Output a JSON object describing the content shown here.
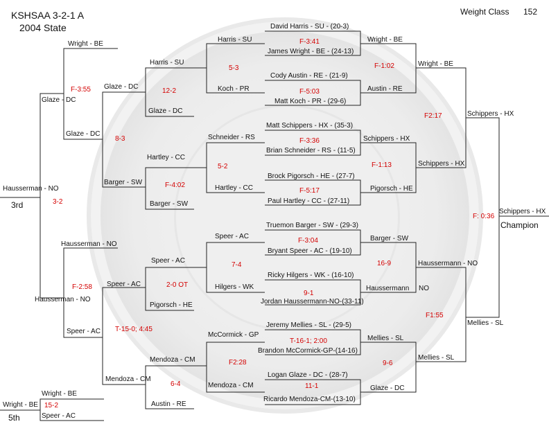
{
  "header": {
    "line1": "KSHSAA 3-2-1 A",
    "line2": "2004 State",
    "weight_label": "Weight Class",
    "weight_value": "152"
  },
  "round1": {
    "m1": {
      "top": "David Harris - SU - (20-3)",
      "bottom": "James Wright - BE - (24-13)",
      "score": "F-3:41"
    },
    "m2": {
      "top": "Cody Austin - RE - (21-9)",
      "bottom": "Matt Koch - PR - (29-6)",
      "score": "F-5:03"
    },
    "m3": {
      "top": "Matt Schippers - HX - (35-3)",
      "bottom": "Brian Schneider - RS - (11-5)",
      "score": "F-3:36"
    },
    "m4": {
      "top": "Brock Pigorsch - HE - (27-7)",
      "bottom": "Paul Hartley - CC - (27-11)",
      "score": "F-5:17"
    },
    "m5": {
      "top": "Truemon Barger - SW - (29-3)",
      "bottom": "Bryant Speer - AC - (19-10)",
      "score": "F-3:04"
    },
    "m6": {
      "top": "Ricky Hilgers - WK - (16-10)",
      "bottom": "Jordan Haussermann-NO-(33-11)",
      "score": "9-1"
    },
    "m7": {
      "top": "Jeremy Mellies - SL - (29-5)",
      "bottom": "Brandon McCormick-GP-(14-16)",
      "score": "T-16-1; 2:00"
    },
    "m8": {
      "top": "Logan Glaze - DC - (28-7)",
      "bottom": "Ricardo Mendoza-CM-(13-10)",
      "score": "11-1"
    }
  },
  "quarters": {
    "q1": {
      "name": "Wright - BE",
      "score": "F-1:02"
    },
    "q2": {
      "name": "Austin - RE"
    },
    "q3": {
      "name": "Schippers - HX",
      "score": "F-1:13"
    },
    "q4": {
      "name": "Pigorsch - HE"
    },
    "q5": {
      "name": "Barger - SW",
      "score": "16-9"
    },
    "q6": {
      "name": "Haussermann",
      "suffix": "NO"
    },
    "q7": {
      "name": "Mellies - SL",
      "score": "9-6"
    },
    "q8": {
      "name": "Glaze - DC"
    }
  },
  "semis": {
    "s1": {
      "name": "Wright - BE",
      "score": "F2:17"
    },
    "s2": {
      "name": "Schippers - HX"
    },
    "s3": {
      "name": "Haussermann - NO",
      "score": "F1:55"
    },
    "s4": {
      "name": "Mellies - SL"
    }
  },
  "finals": {
    "f1": {
      "name": "Schippers - HX",
      "score": "F: 0:36"
    },
    "f2": {
      "name": "Mellies - SL"
    },
    "champion_name": "Schippers - HX",
    "champion_label": "Champion"
  },
  "consolation": {
    "c1": {
      "top": "Harris - SU",
      "bottom": "Koch - PR",
      "score": "5-3"
    },
    "c2": {
      "top": "Schneider - RS",
      "bottom": "Hartley - CC",
      "score": "5-2"
    },
    "c3": {
      "top": "Speer - AC",
      "bottom": "Hilgers - WK",
      "score": "7-4"
    },
    "c4": {
      "top": "McCormick - GP",
      "bottom": "Mendoza - CM",
      "score": "F2:28"
    },
    "d1": {
      "top": "Harris - SU",
      "bottom": "Glaze - DC",
      "score": "12-2"
    },
    "d2": {
      "top": "Hartley - CC",
      "bottom": "Barger - SW",
      "score": "F-4:02"
    },
    "d3": {
      "top": "Speer - AC",
      "bottom": "Pigorsch - HE",
      "score": "2-0 OT"
    },
    "d4": {
      "top": "Mendoza - CM",
      "bottom": "Austin - RE",
      "score": "6-4"
    },
    "e1": {
      "top": "Glaze - DC",
      "bottom": "Barger - SW",
      "score": "8-3"
    },
    "e2": {
      "top": "Speer - AC",
      "bottom": "Mendoza - CM",
      "score": "T-15-0; 4:45"
    },
    "g1": {
      "top": "Wright - BE",
      "bottom": "Glaze - DC",
      "score": "F-3:55"
    },
    "g2": {
      "top": "Glaze - DC"
    },
    "g3": {
      "top": "Hausserman - NO",
      "bottom": "Hausserman - NO",
      "score": "F-2:58"
    },
    "g4": {
      "top": "Speer - AC"
    },
    "third_name": "Hausserman - NO",
    "third_label": "3rd",
    "third_score": "3-2",
    "fifth_top": "Wright - BE",
    "fifth_bottom": "Speer - AC",
    "fifth_name": "Wright - BE",
    "fifth_score": "15-2",
    "fifth_label": "5th"
  }
}
